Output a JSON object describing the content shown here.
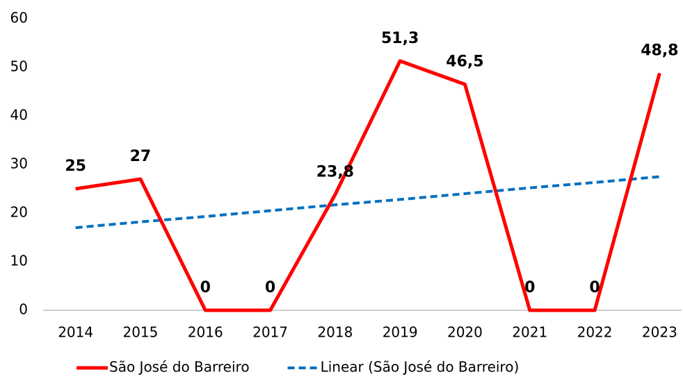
{
  "chart_data": {
    "type": "line",
    "categories": [
      "2014",
      "2015",
      "2016",
      "2017",
      "2018",
      "2019",
      "2020",
      "2021",
      "2022",
      "2023"
    ],
    "series": [
      {
        "name": "São José do Barreiro",
        "color": "#ff0000",
        "style": "solid",
        "values": [
          25,
          27,
          0,
          0,
          23.8,
          51.3,
          46.5,
          0,
          0,
          48.8
        ],
        "value_labels": [
          "25",
          "27",
          "0",
          "0",
          "23,8",
          "51,3",
          "46,5",
          "0",
          "0",
          "48,8"
        ]
      },
      {
        "name": "Linear (São José do Barreiro)",
        "color": "#0070c0",
        "style": "dashed",
        "values": [
          17.0,
          18.2,
          19.3,
          20.5,
          21.7,
          22.8,
          24.0,
          25.2,
          26.3,
          27.5
        ]
      }
    ],
    "ylim": [
      0,
      60
    ],
    "yticks": [
      0,
      10,
      20,
      30,
      40,
      50,
      60
    ],
    "grid": false,
    "legend": "bottom"
  }
}
